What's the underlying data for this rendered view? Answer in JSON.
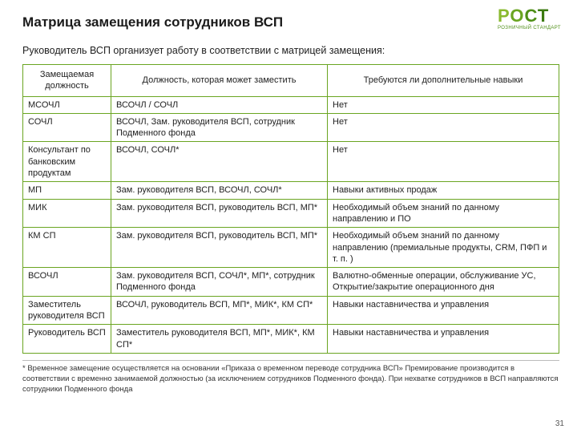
{
  "title": "Матрица замещения сотрудников ВСП",
  "subtitle": "Руководитель ВСП организует работу в соответствии с матрицей замещения:",
  "logo": {
    "text": "РОСТ",
    "sub": "РОЗНИЧНЫЙ СТАНДАРТ"
  },
  "table": {
    "headers": {
      "col1": "Замещаемая должность",
      "col2": "Должность, которая может заместить",
      "col3": "Требуются ли дополнительные навыки"
    },
    "rows": [
      {
        "c1": "МСОЧЛ",
        "c2": "ВСОЧЛ / СОЧЛ",
        "c3": "Нет"
      },
      {
        "c1": "СОЧЛ",
        "c2": "ВСОЧЛ, Зам. руководителя ВСП, сотрудник Подменного фонда",
        "c3": "Нет"
      },
      {
        "c1": "Консультант по банковским продуктам",
        "c2": "ВСОЧЛ, СОЧЛ*",
        "c3": "Нет"
      },
      {
        "c1": "МП",
        "c2": "Зам. руководителя ВСП, ВСОЧЛ, СОЧЛ*",
        "c3": "Навыки активных продаж"
      },
      {
        "c1": "МИК",
        "c2": "Зам. руководителя ВСП, руководитель ВСП, МП*",
        "c3": "Необходимый объем знаний по данному направлению и ПО"
      },
      {
        "c1": "КМ СП",
        "c2": "Зам. руководителя ВСП, руководитель ВСП, МП*",
        "c3": "Необходимый объем знаний по данному направлению (премиальные продукты, CRM, ПФП и т. п. )"
      },
      {
        "c1": "ВСОЧЛ",
        "c2": "Зам. руководителя ВСП, СОЧЛ*, МП*, сотрудник Подменного фонда",
        "c3": "Валютно-обменные операции, обслуживание УС, Открытие/закрытие операционного дня"
      },
      {
        "c1": "Заместитель руководителя ВСП",
        "c2": "ВСОЧЛ,  руководитель ВСП, МП*, МИК*, КМ СП*",
        "c3": "Навыки наставничества и управления"
      },
      {
        "c1": "Руководитель ВСП",
        "c2": "Заместитель руководителя ВСП, МП*, МИК*, КМ СП*",
        "c3": "Навыки наставничества и управления"
      }
    ]
  },
  "footnote": "* Временное замещение осуществляется на основании «Приказа о временном переводе сотрудника ВСП» Премирование производится в соответствии с временно занимаемой должностью (за исключением сотрудников Подменного фонда). При нехватке сотрудников в ВСП направляются сотрудники Подменного фонда",
  "page_number": "31",
  "colors": {
    "border": "#6aa521",
    "logo_gradient": [
      "#8aba2f",
      "#6aa521",
      "#4f8f17",
      "#3b7a0f"
    ]
  }
}
